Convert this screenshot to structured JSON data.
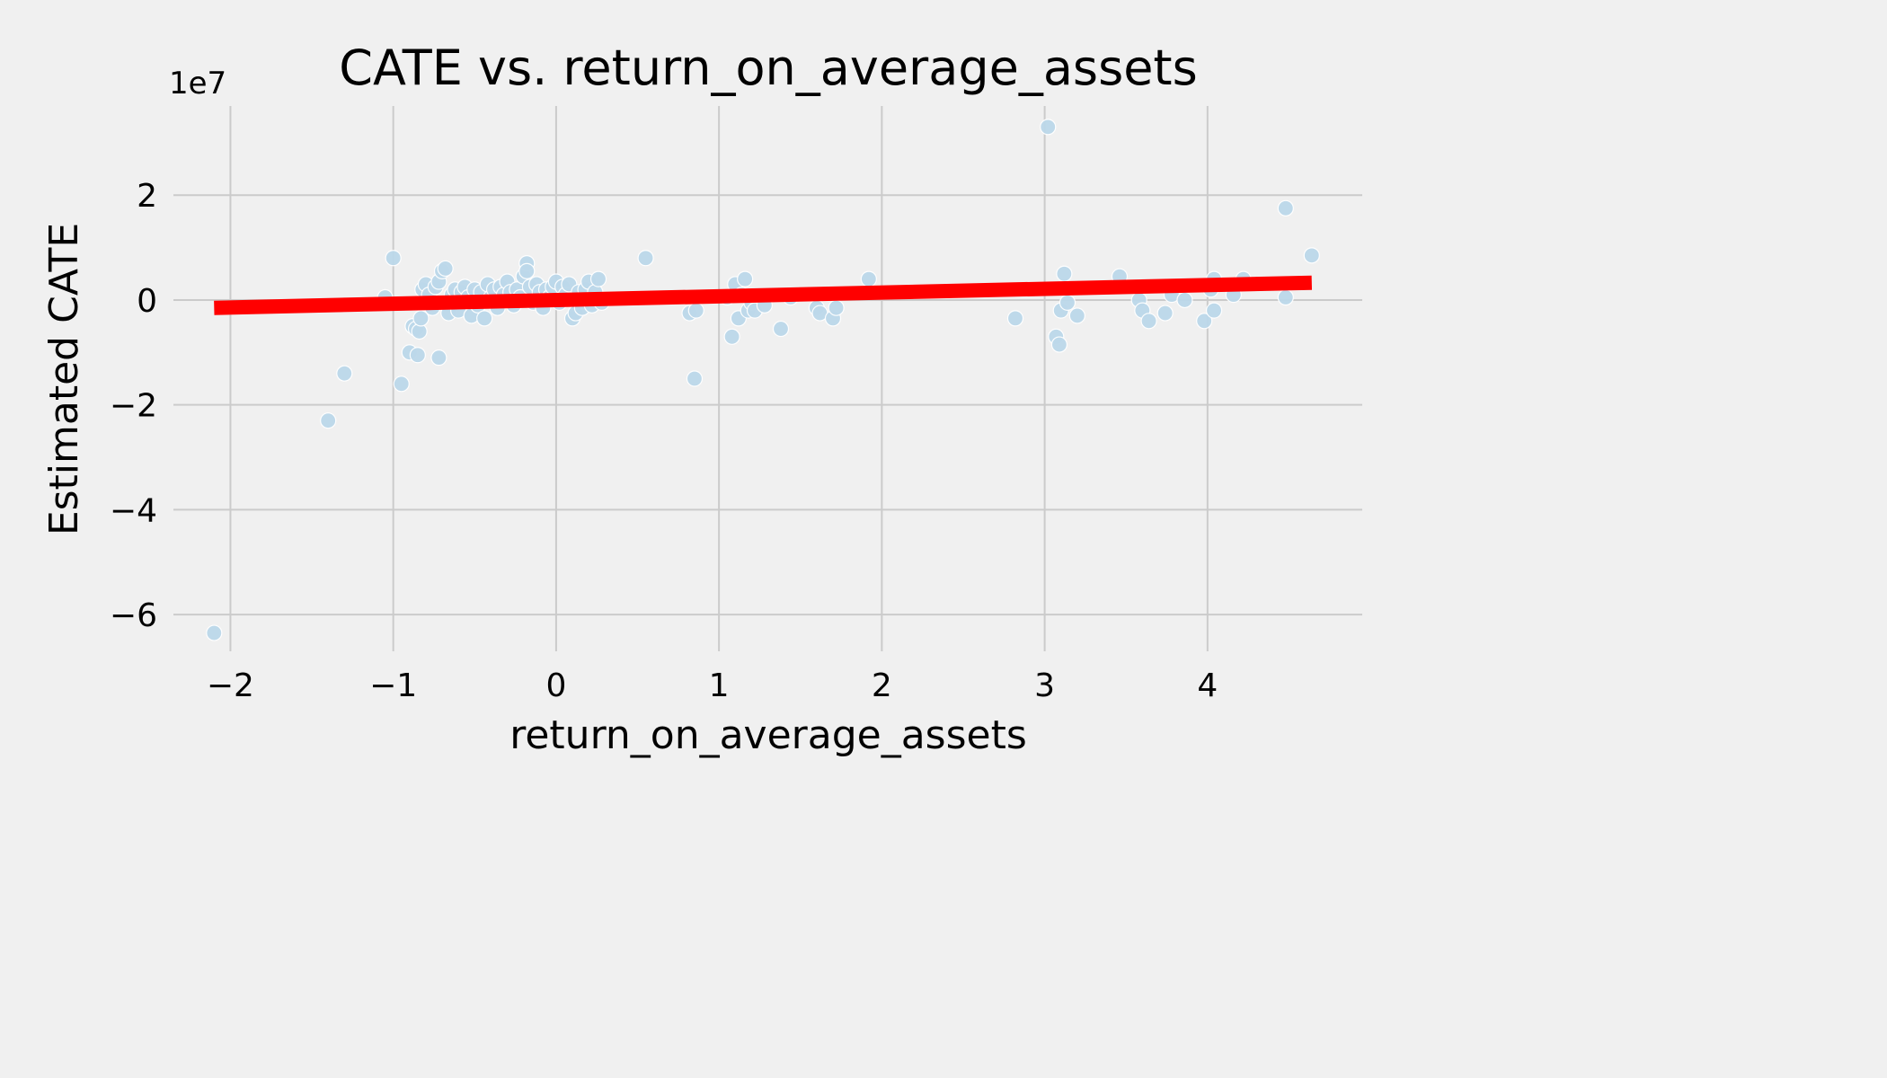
{
  "chart_data": {
    "type": "scatter",
    "title": "CATE vs. return_on_average_assets",
    "xlabel": "return_on_average_assets",
    "ylabel": "Estimated CATE",
    "y_offset_text": "1e7",
    "xlim": [
      -2.35,
      4.95
    ],
    "ylim": [
      -6.7,
      3.7
    ],
    "x_ticks": [
      -2,
      -1,
      0,
      1,
      2,
      3,
      4
    ],
    "x_tick_labels": [
      "−2",
      "−1",
      "0",
      "1",
      "2",
      "3",
      "4"
    ],
    "y_ticks": [
      -6,
      -4,
      -2,
      0,
      2
    ],
    "y_tick_labels": [
      "−6",
      "−4",
      "−2",
      "0",
      "2"
    ],
    "grid": true,
    "colors": {
      "points": "#bcd8ea",
      "trend": "#ff0000",
      "background": "#f0f0f0",
      "grid": "#cbcbcb"
    },
    "series": [
      {
        "kind": "points",
        "values": [
          [
            -2.1,
            -6.35
          ],
          [
            -1.4,
            -2.3
          ],
          [
            -1.3,
            -1.4
          ],
          [
            -1.05,
            0.05
          ],
          [
            -1.0,
            0.8
          ],
          [
            -0.95,
            -1.6
          ],
          [
            -0.9,
            -1.0
          ],
          [
            -0.88,
            -0.5
          ],
          [
            -0.86,
            -0.55
          ],
          [
            -0.85,
            -1.05
          ],
          [
            -0.84,
            -0.6
          ],
          [
            -0.83,
            -0.35
          ],
          [
            -0.82,
            0.2
          ],
          [
            -0.8,
            0.3
          ],
          [
            -0.78,
            0.1
          ],
          [
            -0.76,
            -0.15
          ],
          [
            -0.74,
            0.25
          ],
          [
            -0.72,
            -1.1
          ],
          [
            -0.72,
            0.35
          ],
          [
            -0.7,
            0.55
          ],
          [
            -0.68,
            0.6
          ],
          [
            -0.66,
            -0.25
          ],
          [
            -0.64,
            0.1
          ],
          [
            -0.62,
            0.2
          ],
          [
            -0.6,
            -0.2
          ],
          [
            -0.58,
            0.15
          ],
          [
            -0.56,
            0.25
          ],
          [
            -0.54,
            0.05
          ],
          [
            -0.52,
            -0.3
          ],
          [
            -0.5,
            0.2
          ],
          [
            -0.48,
            -0.1
          ],
          [
            -0.46,
            0.15
          ],
          [
            -0.44,
            -0.35
          ],
          [
            -0.42,
            0.3
          ],
          [
            -0.4,
            0.05
          ],
          [
            -0.38,
            0.2
          ],
          [
            -0.36,
            -0.15
          ],
          [
            -0.34,
            0.25
          ],
          [
            -0.32,
            0.1
          ],
          [
            -0.3,
            0.35
          ],
          [
            -0.28,
            0.15
          ],
          [
            -0.26,
            -0.1
          ],
          [
            -0.24,
            0.2
          ],
          [
            -0.22,
            0.05
          ],
          [
            -0.2,
            0.45
          ],
          [
            -0.18,
            0.7
          ],
          [
            -0.18,
            0.55
          ],
          [
            -0.16,
            0.25
          ],
          [
            -0.14,
            -0.05
          ],
          [
            -0.12,
            0.3
          ],
          [
            -0.1,
            0.15
          ],
          [
            -0.08,
            -0.15
          ],
          [
            -0.06,
            0.2
          ],
          [
            -0.04,
            0.05
          ],
          [
            -0.02,
            0.25
          ],
          [
            0.0,
            0.35
          ],
          [
            0.02,
            -0.05
          ],
          [
            0.04,
            0.25
          ],
          [
            0.06,
            0.1
          ],
          [
            0.08,
            0.3
          ],
          [
            0.1,
            -0.35
          ],
          [
            0.12,
            -0.25
          ],
          [
            0.14,
            0.15
          ],
          [
            0.16,
            -0.15
          ],
          [
            0.18,
            0.2
          ],
          [
            0.2,
            0.35
          ],
          [
            0.22,
            -0.1
          ],
          [
            0.24,
            0.15
          ],
          [
            0.26,
            0.4
          ],
          [
            0.28,
            -0.05
          ],
          [
            0.55,
            0.8
          ],
          [
            0.82,
            -0.25
          ],
          [
            0.85,
            -1.5
          ],
          [
            0.86,
            -0.2
          ],
          [
            1.05,
            0.05
          ],
          [
            1.08,
            -0.7
          ],
          [
            1.1,
            0.3
          ],
          [
            1.12,
            -0.35
          ],
          [
            1.14,
            0.1
          ],
          [
            1.16,
            0.4
          ],
          [
            1.18,
            -0.2
          ],
          [
            1.2,
            -0.05
          ],
          [
            1.22,
            -0.2
          ],
          [
            1.28,
            -0.1
          ],
          [
            1.38,
            -0.55
          ],
          [
            1.44,
            0.05
          ],
          [
            1.6,
            -0.15
          ],
          [
            1.62,
            -0.25
          ],
          [
            1.7,
            -0.35
          ],
          [
            1.72,
            -0.15
          ],
          [
            1.92,
            0.4
          ],
          [
            2.82,
            -0.35
          ],
          [
            3.02,
            3.3
          ],
          [
            3.07,
            -0.7
          ],
          [
            3.09,
            -0.85
          ],
          [
            3.1,
            -0.2
          ],
          [
            3.12,
            0.5
          ],
          [
            3.14,
            -0.05
          ],
          [
            3.2,
            -0.3
          ],
          [
            3.46,
            0.45
          ],
          [
            3.58,
            0.0
          ],
          [
            3.6,
            -0.2
          ],
          [
            3.64,
            -0.4
          ],
          [
            3.74,
            -0.25
          ],
          [
            3.78,
            0.1
          ],
          [
            3.86,
            0.0
          ],
          [
            3.98,
            -0.4
          ],
          [
            4.02,
            0.2
          ],
          [
            4.04,
            0.4
          ],
          [
            4.04,
            -0.2
          ],
          [
            4.16,
            0.1
          ],
          [
            4.22,
            0.4
          ],
          [
            4.48,
            1.75
          ],
          [
            4.48,
            0.05
          ],
          [
            4.64,
            0.85
          ]
        ]
      },
      {
        "kind": "trend",
        "x": [
          -2.1,
          4.64
        ],
        "y": [
          -0.15,
          0.33
        ]
      }
    ]
  }
}
